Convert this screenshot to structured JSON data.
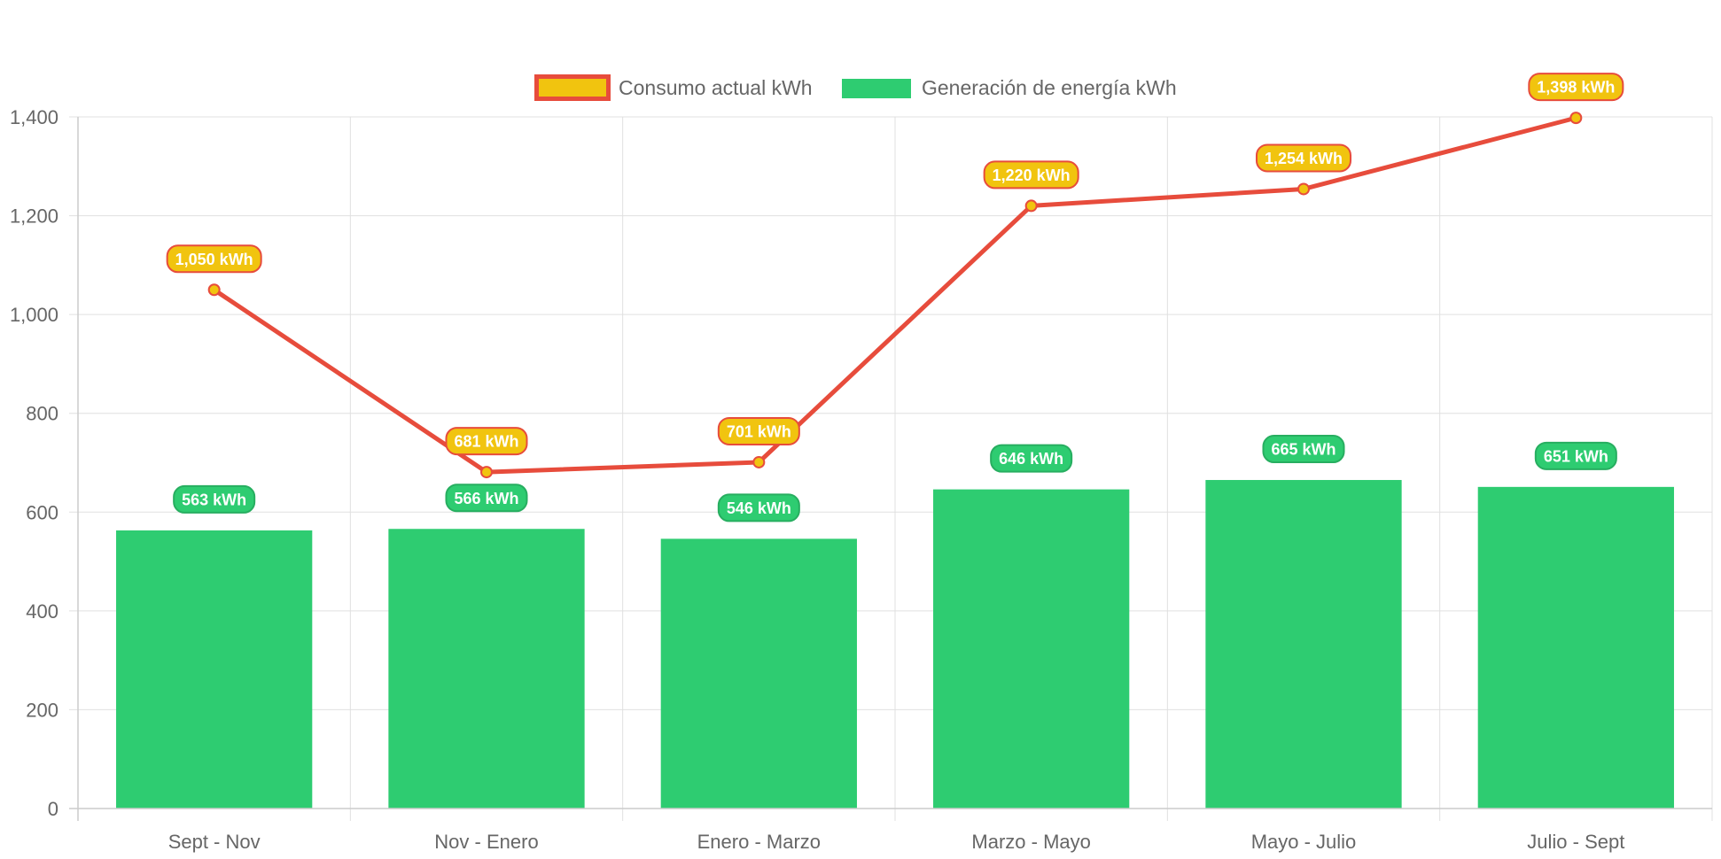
{
  "chart_data": {
    "type": "bar",
    "categories": [
      "Sept - Nov",
      "Nov - Enero",
      "Enero - Marzo",
      "Marzo - Mayo",
      "Mayo - Julio",
      "Julio - Sept"
    ],
    "series": [
      {
        "name": "Consumo actual kWh",
        "type": "line",
        "values": [
          1050,
          681,
          701,
          1220,
          1254,
          1398
        ],
        "labels": [
          "1,050 kWh",
          "681 kWh",
          "701 kWh",
          "1,220 kWh",
          "1,254 kWh",
          "1,398 kWh"
        ],
        "color": "#e74c3c",
        "fill": "#f1c40f"
      },
      {
        "name": "Generación de energía kWh",
        "type": "bar",
        "values": [
          563,
          566,
          546,
          646,
          665,
          651
        ],
        "labels": [
          "563 kWh",
          "566 kWh",
          "546 kWh",
          "646 kWh",
          "665 kWh",
          "651 kWh"
        ],
        "color": "#2ecc71",
        "border": "#27ae60"
      }
    ],
    "title": "",
    "xlabel": "",
    "ylabel": "",
    "ylim": [
      0,
      1400
    ],
    "yticks": [
      0,
      200,
      400,
      600,
      800,
      1000,
      1200,
      1400
    ],
    "ytick_labels": [
      "0",
      "200",
      "400",
      "600",
      "800",
      "1,000",
      "1,200",
      "1,400"
    ],
    "grid": true,
    "legend_position": "top-center"
  }
}
